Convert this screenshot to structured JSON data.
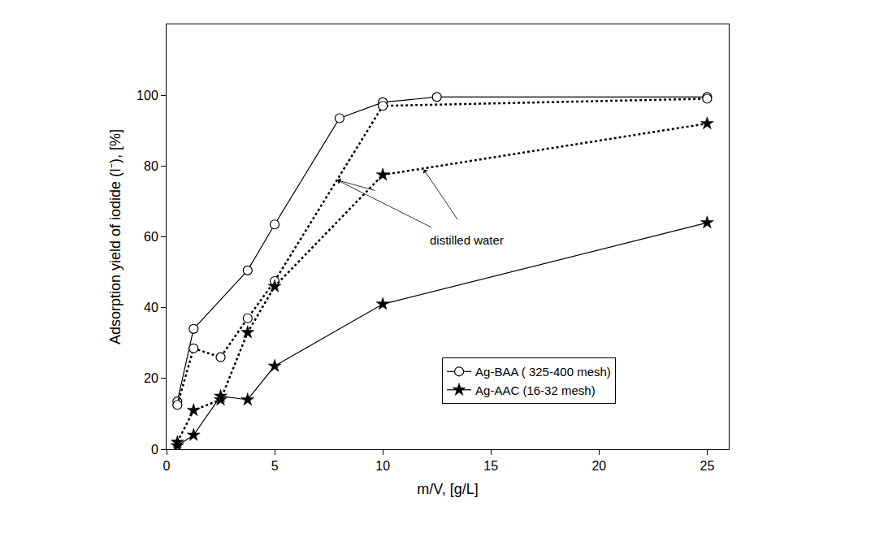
{
  "chart_data": {
    "type": "line",
    "x_label": "m/V, [g/L]",
    "y_label": "Adsorption yield of iodide (I⁻), [%]",
    "xlim": [
      0,
      26
    ],
    "xticks": [
      0,
      5,
      10,
      15,
      20,
      25
    ],
    "ylim": [
      0,
      120
    ],
    "yticks": [
      0,
      20,
      40,
      60,
      80,
      100
    ],
    "grid": false,
    "legend": "lower right",
    "annotations": [
      {
        "text": "distilled water"
      }
    ],
    "series": [
      {
        "name": "Ag-BAA ( 325-400 mesh)",
        "color": "#000000",
        "marker": "circle-open",
        "line_style": "solid",
        "x": [
          0.5,
          1.25,
          3.75,
          5,
          8,
          10,
          12.5,
          25
        ],
        "values": [
          13.5,
          34,
          50.5,
          63.5,
          93.5,
          98,
          99.5,
          99.5
        ]
      },
      {
        "color": "#000000",
        "marker": "circle-open",
        "line_style": "dotted",
        "x": [
          0.5,
          1.25,
          2.5,
          3.75,
          5,
          10,
          25
        ],
        "values": [
          12.5,
          28.5,
          26,
          37,
          47.5,
          97,
          99
        ]
      },
      {
        "name": "Ag-AAC (16-32 mesh)",
        "color": "#000000",
        "marker": "star",
        "line_style": "solid",
        "x": [
          0.5,
          1.25,
          2.5,
          3.75,
          5,
          10,
          25
        ],
        "values": [
          1,
          4,
          15,
          14,
          23.5,
          41,
          64
        ]
      },
      {
        "color": "#000000",
        "marker": "star",
        "line_style": "dotted",
        "x": [
          0.5,
          1.25,
          2.5,
          3.75,
          5,
          10,
          25
        ],
        "values": [
          2,
          11,
          14,
          33,
          46,
          77.5,
          92
        ]
      }
    ]
  }
}
